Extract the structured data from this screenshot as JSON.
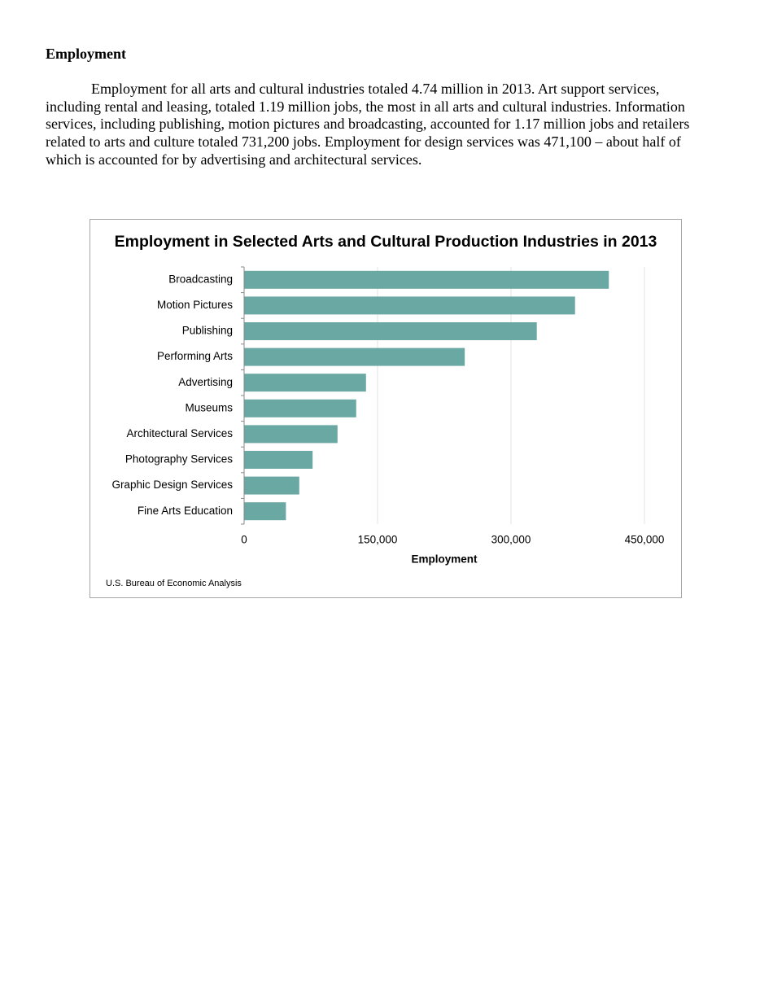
{
  "heading": "Employment",
  "paragraph": "Employment for all arts and cultural industries totaled 4.74 million in 2013.  Art support services, including rental and leasing, totaled 1.19 million jobs, the most in all arts and cultural industries. Information services, including publishing, motion pictures and broadcasting, accounted for 1.17 million jobs and retailers related to arts and culture totaled 731,200 jobs.  Employment for design services was 471,100 – about half of which is accounted for by advertising and architectural services.",
  "chart_data": {
    "type": "bar",
    "orientation": "horizontal",
    "title": "Employment in Selected Arts and Cultural Production Industries in 2013",
    "x_label": "Employment",
    "source": "U.S. Bureau of Economic Analysis",
    "categories": [
      "Broadcasting",
      "Motion Pictures",
      "Publishing",
      "Performing Arts",
      "Advertising",
      "Museums",
      "Architectural Services",
      "Photography Services",
      "Graphic Design Services",
      "Fine Arts Education"
    ],
    "values": [
      410000,
      372000,
      329000,
      248000,
      137000,
      126000,
      105000,
      77000,
      62000,
      47000
    ],
    "color": "#6aa8a3",
    "xlim": [
      0,
      450000
    ],
    "xticks": [
      0,
      {
        "value": 150000,
        "label": "150,000"
      },
      {
        "value": 300000,
        "label": "300,000"
      },
      {
        "value": 450000,
        "label": "450,000"
      }
    ],
    "grid": true
  }
}
